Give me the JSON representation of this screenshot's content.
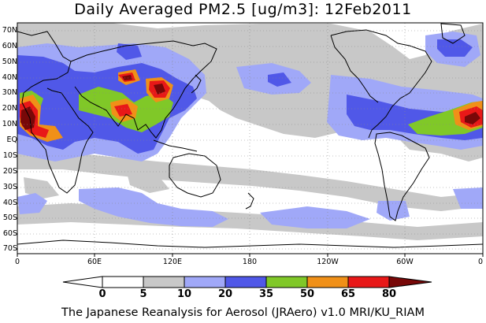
{
  "title": "Daily Averaged PM2.5 [ug/m3]: 12Feb2011",
  "footer": "The Japanese Reanalysis for Aerosol (JRAero) v1.0 MRI/KU_RIAM",
  "lat_labels": [
    "70N",
    "60N",
    "50N",
    "40N",
    "30N",
    "20N",
    "10N",
    "EQ",
    "10S",
    "20S",
    "30S",
    "40S",
    "50S",
    "60S",
    "70S"
  ],
  "lon_labels": [
    "0",
    "60E",
    "120E",
    "180",
    "120W",
    "60W",
    "0"
  ],
  "colorbar": {
    "labels": [
      "0",
      "5",
      "10",
      "20",
      "35",
      "50",
      "65",
      "80"
    ],
    "colors": [
      "#ffffff",
      "#c8c8c8",
      "#a0a8f8",
      "#5058e8",
      "#80c828",
      "#f09018",
      "#e81818",
      "#780808"
    ]
  }
}
